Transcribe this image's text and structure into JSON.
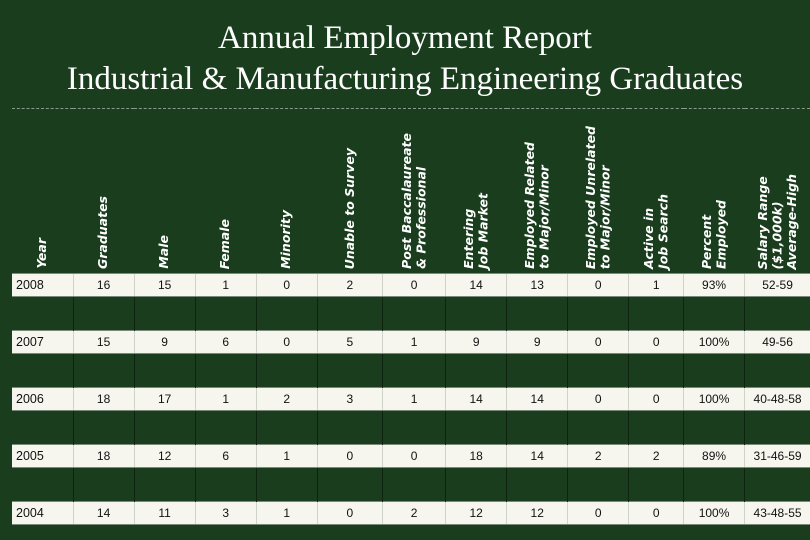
{
  "title": {
    "line1": "Annual Employment Report",
    "line2": "Industrial & Manufacturing Engineering Graduates"
  },
  "columns": [
    [
      "Year"
    ],
    [
      "Graduates"
    ],
    [
      "Male"
    ],
    [
      "Female"
    ],
    [
      "Minority"
    ],
    [
      "Unable to Survey"
    ],
    [
      "Post Baccalaureate",
      "& Professional"
    ],
    [
      "Entering",
      "Job Market"
    ],
    [
      "Employed Related",
      "to Major/Minor"
    ],
    [
      "Employed Unrelated",
      "to Major/Minor"
    ],
    [
      "Active in",
      "Job Search"
    ],
    [
      "Percent",
      "Employed"
    ],
    [
      "Salary Range",
      "($1,000k)",
      "Average-High"
    ]
  ],
  "rows": [
    [
      "2008",
      "16",
      "15",
      "1",
      "0",
      "2",
      "0",
      "14",
      "13",
      "0",
      "1",
      "93%",
      "52-59"
    ],
    [
      "2007",
      "15",
      "9",
      "6",
      "0",
      "5",
      "1",
      "9",
      "9",
      "0",
      "0",
      "100%",
      "49-56"
    ],
    [
      "2006",
      "18",
      "17",
      "1",
      "2",
      "3",
      "1",
      "14",
      "14",
      "0",
      "0",
      "100%",
      "40-48-58"
    ],
    [
      "2005",
      "18",
      "12",
      "6",
      "1",
      "0",
      "0",
      "18",
      "14",
      "2",
      "2",
      "89%",
      "31-46-59"
    ],
    [
      "2004",
      "14",
      "11",
      "3",
      "1",
      "0",
      "2",
      "12",
      "12",
      "0",
      "0",
      "100%",
      "43-48-55"
    ]
  ]
}
